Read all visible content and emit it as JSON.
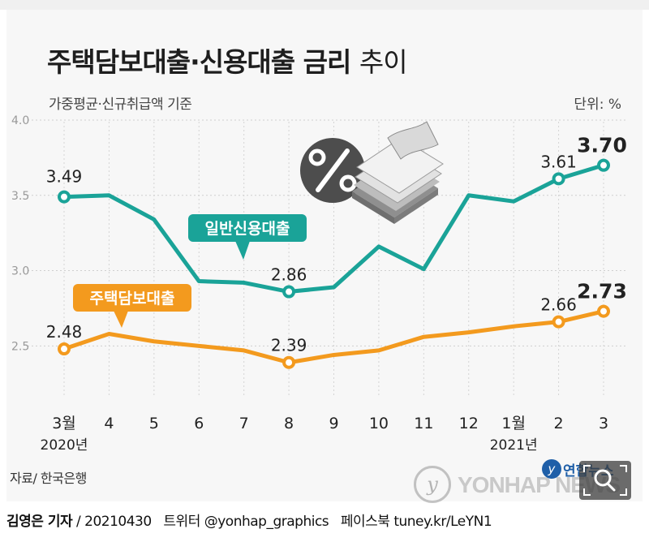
{
  "chart_data": {
    "type": "line",
    "title_main": "주택담보대출·신용대출 금리",
    "title_suffix": "추이",
    "subtitle": "가중평균·신규취급액 기준",
    "unit": "단위: %",
    "categories": [
      "3월",
      "4",
      "5",
      "6",
      "7",
      "8",
      "9",
      "10",
      "11",
      "12",
      "1월",
      "2",
      "3"
    ],
    "year_labels": [
      {
        "index": 0,
        "label": "2020년"
      },
      {
        "index": 10,
        "label": "2021년"
      }
    ],
    "ylim": [
      2.2,
      4.0
    ],
    "yticks": [
      "4.0",
      "3.5",
      "3.0",
      "2.5"
    ],
    "series": [
      {
        "name": "일반신용대출",
        "color": "#1aa398",
        "values": [
          3.49,
          3.5,
          3.34,
          2.93,
          2.92,
          2.86,
          2.89,
          3.16,
          3.01,
          3.5,
          3.46,
          3.61,
          3.7
        ],
        "labeled": [
          {
            "index": 0,
            "text": "3.49"
          },
          {
            "index": 5,
            "text": "2.86"
          },
          {
            "index": 11,
            "text": "3.61"
          },
          {
            "index": 12,
            "text": "3.70"
          }
        ]
      },
      {
        "name": "주택담보대출",
        "color": "#f39a1e",
        "values": [
          2.48,
          2.58,
          2.53,
          2.5,
          2.47,
          2.39,
          2.44,
          2.47,
          2.56,
          2.59,
          2.63,
          2.66,
          2.73
        ],
        "labeled": [
          {
            "index": 0,
            "text": "2.48"
          },
          {
            "index": 5,
            "text": "2.39"
          },
          {
            "index": 11,
            "text": "2.66"
          },
          {
            "index": 12,
            "text": "2.73"
          }
        ]
      }
    ],
    "grid": true,
    "source": "자료/ 한국은행"
  },
  "watermark": {
    "text": "YONHAP NEWS",
    "brand": "연합뉴스"
  },
  "credit": {
    "reporter": "김영은 기자",
    "date": "/ 20210430",
    "twitter": "트위터 @yonhap_graphics",
    "facebook": "페이스북 tuney.kr/LeYN1"
  },
  "icons": [
    "percent-icon",
    "money-stack-icon",
    "search-icon"
  ]
}
